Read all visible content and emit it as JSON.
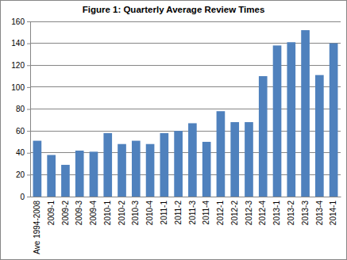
{
  "chart_data": {
    "type": "bar",
    "title": "Figure 1: Quarterly Average Review Times",
    "categories": [
      "Ave 1994-2008",
      "2009-1",
      "2009-2",
      "2009-3",
      "2009-4",
      "2010-1",
      "2010-2",
      "2010-3",
      "2010-4",
      "2011-1",
      "2011-2",
      "2011-3",
      "2011-4",
      "2012-1",
      "2012-2",
      "2012-3",
      "2012-4",
      "2013-1",
      "2013-2",
      "2013-3",
      "2013-4",
      "2014-1"
    ],
    "values": [
      51,
      38,
      29,
      42,
      41,
      58,
      48,
      51,
      48,
      58,
      60,
      67,
      50,
      78,
      68,
      68,
      110,
      138,
      141,
      152,
      111,
      140
    ],
    "color": "#4f81bd",
    "ylim": [
      0,
      160
    ],
    "yticks": [
      0,
      20,
      40,
      60,
      80,
      100,
      120,
      140,
      160
    ],
    "grid": true
  }
}
